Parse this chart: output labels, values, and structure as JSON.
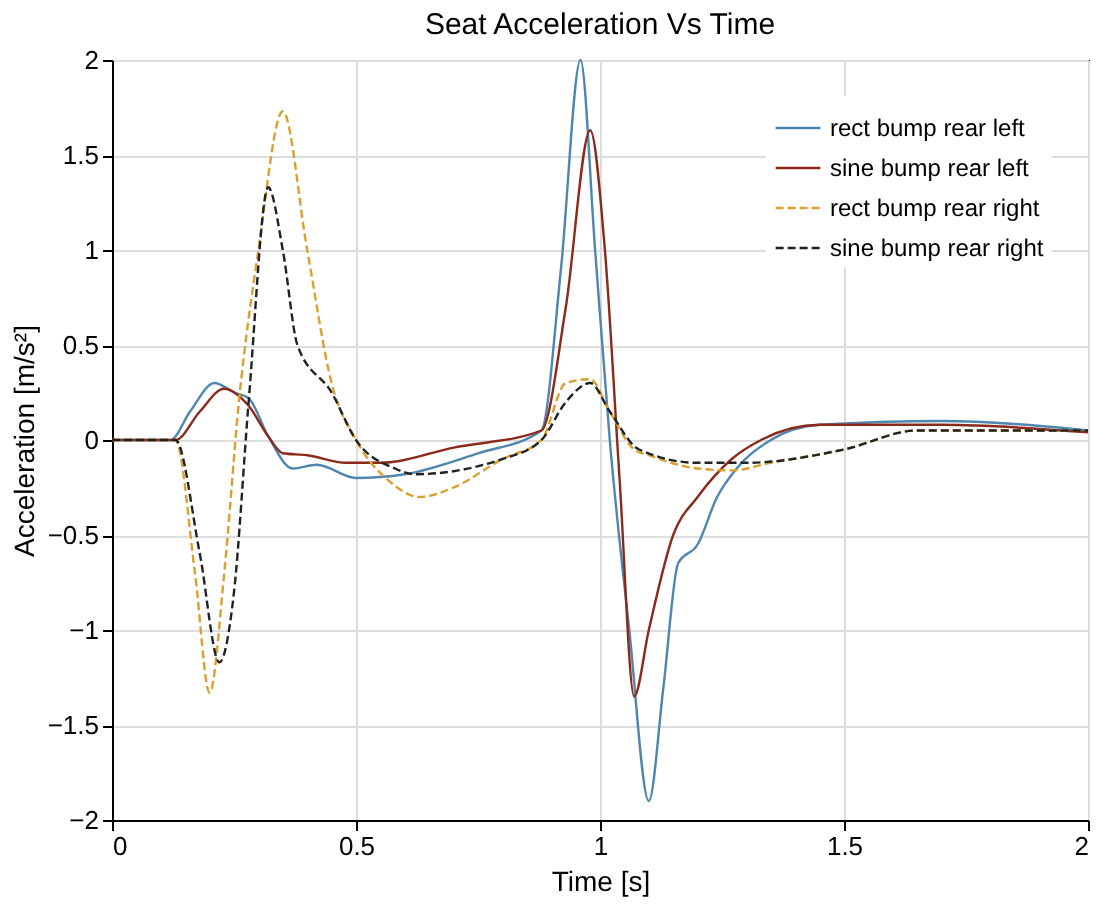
{
  "chart_data": {
    "type": "line",
    "title": "Seat Acceleration Vs Time",
    "xlabel": "Time [s]",
    "ylabel": "Acceleration [m/s²]",
    "xlim": [
      0,
      2
    ],
    "xticks": [
      0,
      0.5,
      1,
      1.5,
      2
    ],
    "ylim": [
      -2,
      2
    ],
    "yticks": [
      -2,
      -1.5,
      -1,
      -0.5,
      0,
      0.5,
      1,
      1.5,
      2
    ],
    "grid": true,
    "legend": "top right",
    "marker": "none",
    "series": [
      {
        "name": "rect bump rear left",
        "color": "#4f86b0",
        "line_style": "solid",
        "x": [
          0,
          0.12,
          0.16,
          0.21,
          0.25,
          0.28,
          0.32,
          0.37,
          0.42,
          0.5,
          0.6,
          0.75,
          0.88,
          0.92,
          0.96,
          0.99,
          1.02,
          1.06,
          1.1,
          1.13,
          1.16,
          1.2,
          1.24,
          1.28,
          1.35,
          1.45,
          1.7,
          2
        ],
        "values": [
          0,
          0,
          0.15,
          0.3,
          0.25,
          0.22,
          0.02,
          -0.15,
          -0.13,
          -0.2,
          -0.18,
          -0.07,
          0.05,
          0.9,
          2.0,
          1.0,
          0,
          -1.0,
          -1.9,
          -1.3,
          -0.65,
          -0.55,
          -0.3,
          -0.15,
          0,
          0.08,
          0.1,
          0.05
        ]
      },
      {
        "name": "sine bump rear left",
        "color": "#8b2a1a",
        "line_style": "solid",
        "x": [
          0,
          0.13,
          0.18,
          0.23,
          0.28,
          0.32,
          0.35,
          0.4,
          0.48,
          0.55,
          0.7,
          0.88,
          0.93,
          0.98,
          1.01,
          1.04,
          1.07,
          1.1,
          1.15,
          1.2,
          1.27,
          1.33,
          1.45,
          1.7,
          2
        ],
        "values": [
          0,
          0,
          0.15,
          0.27,
          0.18,
          0.02,
          -0.07,
          -0.08,
          -0.12,
          -0.12,
          -0.04,
          0.05,
          0.7,
          1.63,
          1.0,
          -0.2,
          -1.35,
          -1.0,
          -0.5,
          -0.3,
          -0.1,
          0,
          0.08,
          0.08,
          0.04
        ]
      },
      {
        "name": "rect bump rear right",
        "color": "#d9a030",
        "line_style": "dashed",
        "x": [
          0,
          0.13,
          0.17,
          0.2,
          0.23,
          0.26,
          0.3,
          0.35,
          0.4,
          0.45,
          0.5,
          0.57,
          0.63,
          0.7,
          0.8,
          0.88,
          0.93,
          0.98,
          1.02,
          1.07,
          1.1,
          1.2,
          1.27,
          1.35,
          1.5,
          1.65,
          2
        ],
        "values": [
          0,
          0,
          -0.7,
          -1.33,
          -0.7,
          0.2,
          1.0,
          1.73,
          1.0,
          0.3,
          0,
          -0.22,
          -0.3,
          -0.25,
          -0.1,
          0,
          0.3,
          0.32,
          0.15,
          -0.05,
          -0.08,
          -0.15,
          -0.16,
          -0.12,
          -0.05,
          0.05,
          0.05
        ]
      },
      {
        "name": "sine bump rear right",
        "color": "#222222",
        "line_style": "dashed",
        "x": [
          0,
          0.13,
          0.18,
          0.22,
          0.25,
          0.28,
          0.32,
          0.35,
          0.38,
          0.45,
          0.5,
          0.58,
          0.62,
          0.8,
          0.88,
          0.93,
          0.98,
          1.02,
          1.08,
          1.2,
          1.3,
          1.5,
          1.65,
          2
        ],
        "values": [
          0,
          0,
          -0.6,
          -1.17,
          -0.8,
          0.2,
          1.33,
          1.0,
          0.5,
          0.25,
          0,
          -0.15,
          -0.18,
          -0.1,
          0,
          0.2,
          0.3,
          0.15,
          -0.05,
          -0.12,
          -0.12,
          -0.05,
          0.05,
          0.05
        ]
      }
    ]
  }
}
